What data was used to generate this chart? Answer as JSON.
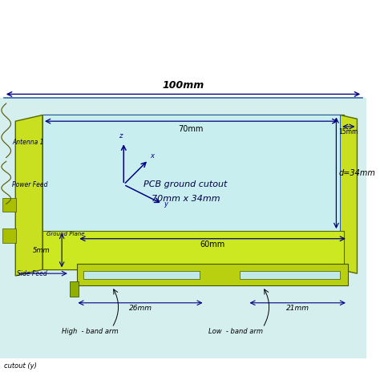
{
  "bg_outer": "#ffffff",
  "bg_cyan": "#d8f0f0",
  "pcb_yellow": "#c8e020",
  "pcb_yellow2": "#d4ec30",
  "pcb_dark": "#b0c010",
  "cutout_color": "#c0ecec",
  "strip_color": "#b8d010",
  "slot_color": "#c5eeee",
  "arrow_color": "#000080",
  "text_color": "#000044",
  "black": "#000000",
  "title_text": "100mm",
  "dim_70mm": "70mm",
  "dim_15mm": "15mm",
  "dim_d34": "d=34mm",
  "dim_60mm": "60mm",
  "dim_5mm": "5mm",
  "dim_26mm": "26mm",
  "dim_21mm": "21mm",
  "label_pcb_line1": "PCB ground cutout",
  "label_pcb_line2": "70mm x 34mm",
  "label_antenna": "Antenna 1",
  "label_power_feed": "Power Feed",
  "label_ground_plane": "Ground Plane",
  "label_side_feed": "Side Feed",
  "label_high_band": "High  - band arm",
  "label_low_band": "Low  - band arm",
  "label_cutout_y": "cutout (y)"
}
